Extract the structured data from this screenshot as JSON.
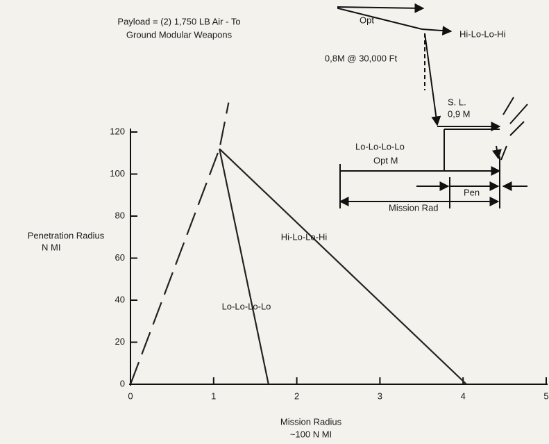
{
  "chart_data": {
    "type": "line",
    "payload_note": [
      "Payload = (2) 1,750 LB Air - To",
      "Ground Modular Weapons"
    ],
    "xlabel": [
      "Mission Radius",
      "~100 N MI"
    ],
    "ylabel": [
      "Penetration Radius",
      "N MI"
    ],
    "xlim": [
      0,
      5
    ],
    "xticks": [
      0,
      1,
      2,
      3,
      4,
      5
    ],
    "ylim": [
      0,
      120
    ],
    "yticks": [
      0,
      20,
      40,
      60,
      80,
      100,
      120
    ],
    "series": [
      {
        "color": "#222",
        "dashed": true,
        "x": [
          0,
          1.07,
          1.18
        ],
        "values": [
          0,
          112,
          134
        ]
      },
      {
        "name": "Lo-Lo-Lo-Lo",
        "color": "#222",
        "x": [
          1.07,
          1.66
        ],
        "values": [
          112,
          0
        ]
      },
      {
        "name": "Hi-Lo-Lo-Hi",
        "color": "#222",
        "x": [
          1.07,
          4.04
        ],
        "values": [
          112,
          0
        ]
      }
    ],
    "profile": {
      "opt": "Opt",
      "hi_name": "Hi-Lo-Lo-Hi",
      "cruise": "0,8M @ 30,000 Ft",
      "sl": [
        "S. L.",
        "0,9 M"
      ],
      "lo_name": "Lo-Lo-Lo-Lo",
      "opt_m": "Opt M",
      "pen": "Pen",
      "mission_rad": "Mission Rad"
    }
  }
}
